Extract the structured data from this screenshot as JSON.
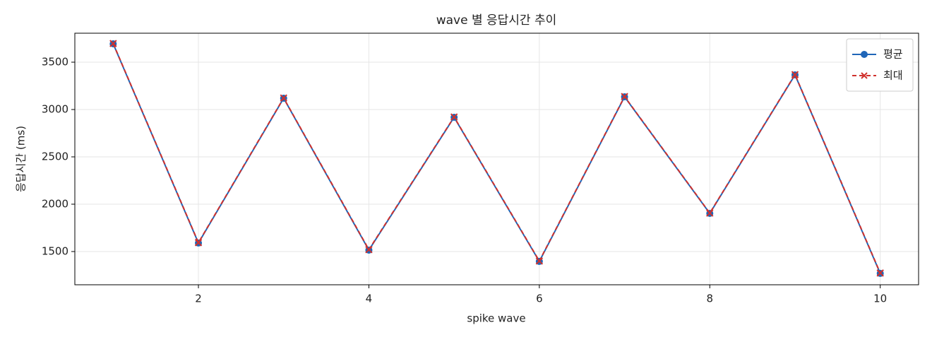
{
  "chart_data": {
    "type": "line",
    "title": "wave 별 응답시간 추이",
    "x_label": "spike wave",
    "y_label": "응답시간 (ms)",
    "x": [
      1,
      2,
      3,
      4,
      5,
      6,
      7,
      8,
      9,
      10
    ],
    "series": [
      {
        "name": "평균",
        "color": "#1f66b8",
        "marker": "circle",
        "dash": false,
        "values": [
          3694,
          1590,
          3119,
          1515,
          2918,
          1396,
          3134,
          1903,
          3366,
          1269
        ]
      },
      {
        "name": "최대",
        "color": "#d0312d",
        "marker": "x",
        "dash": true,
        "values": [
          3697,
          1594,
          3122,
          1520,
          2921,
          1400,
          3137,
          1906,
          3369,
          1273
        ]
      }
    ],
    "xlim": [
      0.55,
      10.45
    ],
    "ylim": [
      1149,
      3806
    ],
    "xticks": [
      2,
      4,
      6,
      8,
      10
    ],
    "yticks": [
      1500,
      2000,
      2500,
      3000,
      3500
    ],
    "grid": true,
    "legend": "upper right"
  }
}
